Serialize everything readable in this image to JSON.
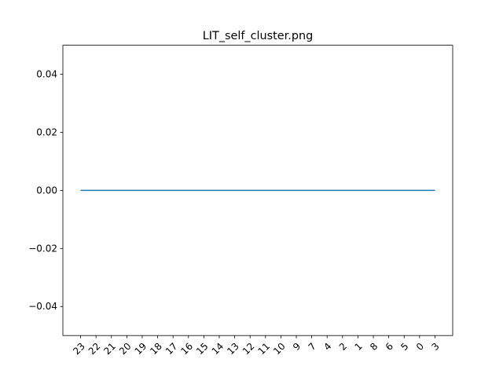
{
  "chart_data": {
    "type": "line",
    "title": "LIT_self_cluster.png",
    "xlabel": "",
    "ylabel": "",
    "categories": [
      "23",
      "22",
      "21",
      "20",
      "19",
      "18",
      "17",
      "16",
      "15",
      "14",
      "13",
      "12",
      "11",
      "10",
      "9",
      "7",
      "4",
      "2",
      "1",
      "8",
      "6",
      "5",
      "0",
      "3"
    ],
    "series": [
      {
        "values": [
          0,
          0,
          0,
          0,
          0,
          0,
          0,
          0,
          0,
          0,
          0,
          0,
          0,
          0,
          0,
          0,
          0,
          0,
          0,
          0,
          0,
          0,
          0,
          0
        ]
      }
    ],
    "ylim": [
      -0.05,
      0.05
    ],
    "yticks": [
      -0.04,
      -0.02,
      0.0,
      0.02,
      0.04
    ],
    "ytick_labels": [
      "−0.04",
      "−0.02",
      "0.00",
      "0.02",
      "0.04"
    ],
    "grid": false,
    "legend": "none",
    "colors": {
      "line": "#1f77b4",
      "axes": "#000000",
      "background": "#ffffff"
    }
  }
}
